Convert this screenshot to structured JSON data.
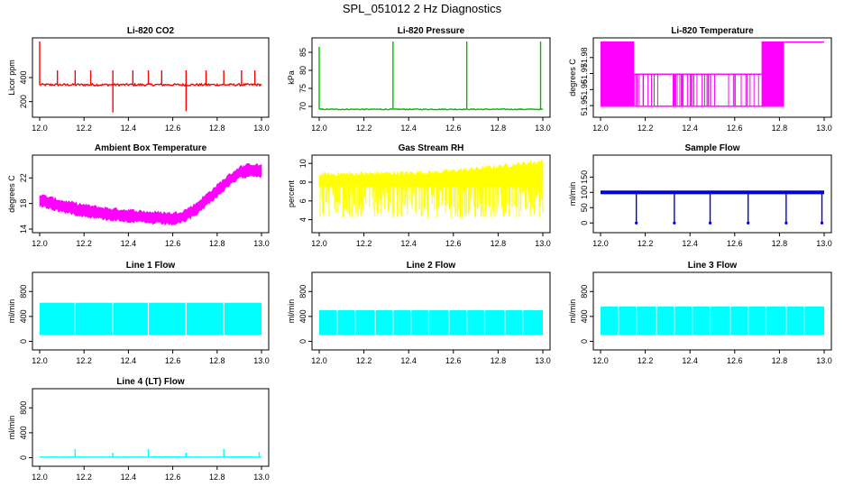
{
  "title": "SPL_051012  2 Hz Diagnostics",
  "chart_data": [
    {
      "type": "line",
      "title": "Li-820 CO2",
      "ylabel": "Licor ppm",
      "color": "#ff0000",
      "xlim": [
        12.0,
        13.0
      ],
      "xticks": [
        "12.0",
        "12.2",
        "12.4",
        "12.6",
        "12.8",
        "13.0"
      ],
      "ylim": [
        100,
        700
      ],
      "yticks": [
        200,
        400
      ],
      "baseline": 340,
      "spikes": [
        {
          "x": 12.0,
          "y": 700
        },
        {
          "x": 12.08,
          "y": 460
        },
        {
          "x": 12.16,
          "y": 460
        },
        {
          "x": 12.23,
          "y": 460
        },
        {
          "x": 12.33,
          "y": 460
        },
        {
          "x": 12.33,
          "y": 110
        },
        {
          "x": 12.42,
          "y": 460
        },
        {
          "x": 12.49,
          "y": 460
        },
        {
          "x": 12.55,
          "y": 460
        },
        {
          "x": 12.66,
          "y": 460
        },
        {
          "x": 12.66,
          "y": 120
        },
        {
          "x": 12.75,
          "y": 460
        },
        {
          "x": 12.83,
          "y": 460
        },
        {
          "x": 12.91,
          "y": 460
        },
        {
          "x": 12.97,
          "y": 460
        }
      ]
    },
    {
      "type": "line",
      "title": "Li-820 Pressure",
      "ylabel": "kPa",
      "color": "#00bb00",
      "xlim": [
        12.0,
        13.0
      ],
      "xticks": [
        "12.0",
        "12.2",
        "12.4",
        "12.6",
        "12.8",
        "13.0"
      ],
      "ylim": [
        68,
        88
      ],
      "yticks": [
        70,
        75,
        80,
        85
      ],
      "baseline": 69.2,
      "spikes": [
        {
          "x": 12.0,
          "y": 86.5
        },
        {
          "x": 12.33,
          "y": 88
        },
        {
          "x": 12.66,
          "y": 88
        },
        {
          "x": 12.99,
          "y": 88
        }
      ]
    },
    {
      "type": "line",
      "title": "Li-820 Temperature",
      "ylabel": "degrees C",
      "color": "#ff00ff",
      "xlim": [
        12.0,
        13.0
      ],
      "xticks": [
        "12.0",
        "12.2",
        "12.4",
        "12.6",
        "12.8",
        "13.0"
      ],
      "ylim": [
        51.945,
        51.99
      ],
      "yticks": [
        "51.95",
        "51.96",
        "51.97",
        "51.98"
      ],
      "levels": {
        "low": 51.95,
        "mid": 51.97,
        "high": 51.99
      }
    },
    {
      "type": "line",
      "title": "Ambient Box Temperature",
      "ylabel": "degrees C",
      "color": "#ff00ff",
      "xlim": [
        12.0,
        13.0
      ],
      "xticks": [
        "12.0",
        "12.2",
        "12.4",
        "12.6",
        "12.8",
        "13.0"
      ],
      "ylim": [
        14,
        25
      ],
      "yticks": [
        14,
        18,
        22
      ],
      "x": [
        12.0,
        12.1,
        12.2,
        12.3,
        12.4,
        12.5,
        12.6,
        12.65,
        12.7,
        12.75,
        12.8,
        12.85,
        12.9,
        12.95,
        13.0
      ],
      "y": [
        18.5,
        17.6,
        16.9,
        16.4,
        16.1,
        15.8,
        15.6,
        16.0,
        17.0,
        18.5,
        20.0,
        21.5,
        22.8,
        23.3,
        23.1
      ],
      "band": 1.2
    },
    {
      "type": "line",
      "title": "Gas Stream RH",
      "ylabel": "percent",
      "color": "#ffff00",
      "xlim": [
        12.0,
        13.0
      ],
      "xticks": [
        "12.0",
        "12.2",
        "12.4",
        "12.6",
        "12.8",
        "13.0"
      ],
      "ylim": [
        3,
        10.5
      ],
      "yticks": [
        4,
        6,
        8,
        10
      ],
      "upper": [
        [
          12.0,
          8.8
        ],
        [
          12.5,
          9.0
        ],
        [
          12.7,
          9.4
        ],
        [
          13.0,
          10.2
        ]
      ],
      "lower": [
        4.2,
        7.5
      ]
    },
    {
      "type": "line",
      "title": "Sample Flow",
      "ylabel": "ml/min",
      "color": "#0000dd",
      "xlim": [
        12.0,
        13.0
      ],
      "xticks": [
        "12.0",
        "12.2",
        "12.4",
        "12.6",
        "12.8",
        "13.0"
      ],
      "ylim": [
        -20,
        210
      ],
      "yticks": [
        0,
        50,
        100,
        150
      ],
      "baseline": 100,
      "dips": [
        12.16,
        12.33,
        12.49,
        12.66,
        12.83,
        12.99
      ]
    },
    {
      "type": "area",
      "title": "Line 1 Flow",
      "ylabel": "ml/min",
      "color": "#00ffff",
      "xlim": [
        12.0,
        13.0
      ],
      "xticks": [
        "12.0",
        "12.2",
        "12.4",
        "12.6",
        "12.8",
        "13.0"
      ],
      "ylim": [
        -80,
        1050
      ],
      "yticks": [
        0,
        400,
        800
      ],
      "upper": 620,
      "lower": 100,
      "gaps": [
        12.16,
        12.33,
        12.49,
        12.66,
        12.83
      ]
    },
    {
      "type": "area",
      "title": "Line 2 Flow",
      "ylabel": "ml/min",
      "color": "#00ffff",
      "xlim": [
        12.0,
        13.0
      ],
      "xticks": [
        "12.0",
        "12.2",
        "12.4",
        "12.6",
        "12.8",
        "13.0"
      ],
      "ylim": [
        -80,
        1050
      ],
      "yticks": [
        0,
        400,
        800
      ],
      "upper": 500,
      "lower": 100,
      "gaps": [
        12.08,
        12.16,
        12.25,
        12.33,
        12.41,
        12.49,
        12.58,
        12.66,
        12.74,
        12.83,
        12.91
      ]
    },
    {
      "type": "area",
      "title": "Line 3 Flow",
      "ylabel": "ml/min",
      "color": "#00ffff",
      "xlim": [
        12.0,
        13.0
      ],
      "xticks": [
        "12.0",
        "12.2",
        "12.4",
        "12.6",
        "12.8",
        "13.0"
      ],
      "ylim": [
        -80,
        1050
      ],
      "yticks": [
        0,
        400,
        800
      ],
      "upper": 560,
      "lower": 100,
      "gaps": [
        12.08,
        12.16,
        12.25,
        12.33,
        12.41,
        12.49,
        12.58,
        12.66,
        12.74,
        12.83,
        12.91
      ]
    },
    {
      "type": "line",
      "title": "Line 4 (LT) Flow",
      "ylabel": "ml/min",
      "color": "#00ffff",
      "xlim": [
        12.0,
        13.0
      ],
      "xticks": [
        "12.0",
        "12.2",
        "12.4",
        "12.6",
        "12.8",
        "13.0"
      ],
      "ylim": [
        -80,
        1050
      ],
      "yticks": [
        0,
        400,
        800
      ],
      "baseline": 10,
      "spikes": [
        {
          "x": 12.16,
          "y": 140
        },
        {
          "x": 12.33,
          "y": 80
        },
        {
          "x": 12.49,
          "y": 140
        },
        {
          "x": 12.66,
          "y": 80
        },
        {
          "x": 12.83,
          "y": 140
        },
        {
          "x": 12.99,
          "y": 90
        }
      ]
    }
  ]
}
